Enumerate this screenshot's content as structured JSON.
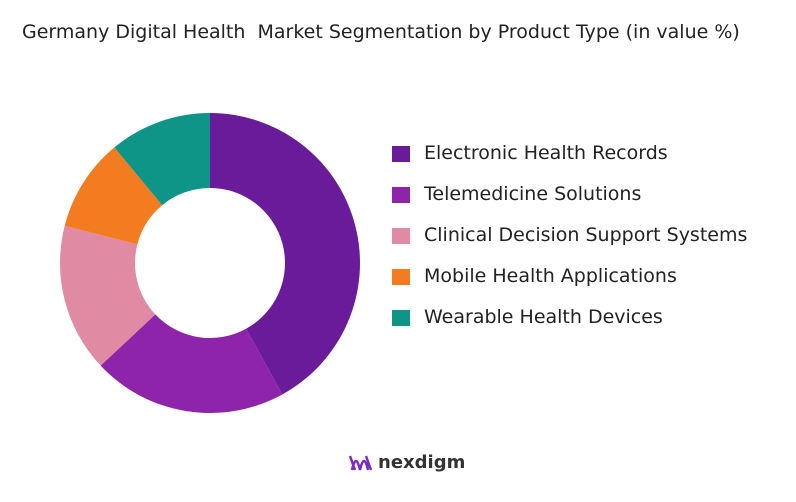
{
  "chart_data": {
    "type": "donut",
    "title": "Germany Digital Health  Market Segmentation by Product Type (in value %)",
    "categories": [
      "Electronic Health Records",
      "Telemedicine Solutions",
      "Clinical Decision Support Systems",
      "Mobile Health Applications",
      "Wearable Health Devices"
    ],
    "values": [
      42,
      21,
      16,
      10,
      11
    ],
    "colors": [
      "#6a1b9a",
      "#8e24aa",
      "#e08aa3",
      "#f47c20",
      "#0f9488"
    ],
    "legend": "right"
  },
  "branding": "nexdigm"
}
